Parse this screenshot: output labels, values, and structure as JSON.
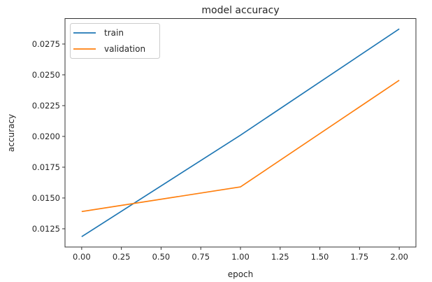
{
  "chart_data": {
    "type": "line",
    "title": "model accuracy",
    "xlabel": "epoch",
    "ylabel": "accuracy",
    "x": [
      0,
      1,
      2
    ],
    "series": [
      {
        "name": "train",
        "values": [
          0.01186,
          0.0201,
          0.02873
        ],
        "color": "#1f77b4"
      },
      {
        "name": "validation",
        "values": [
          0.0139,
          0.0159,
          0.02456
        ],
        "color": "#ff7f0e"
      }
    ],
    "xlim": [
      -0.105,
      2.105
    ],
    "ylim": [
      0.01102,
      0.02957
    ],
    "xticks": [
      "0.00",
      "0.25",
      "0.50",
      "0.75",
      "1.00",
      "1.25",
      "1.50",
      "1.75",
      "2.00"
    ],
    "yticks": [
      "0.0125",
      "0.0150",
      "0.0175",
      "0.0200",
      "0.0225",
      "0.0250",
      "0.0275"
    ],
    "grid": false,
    "legend": "upper-left"
  }
}
